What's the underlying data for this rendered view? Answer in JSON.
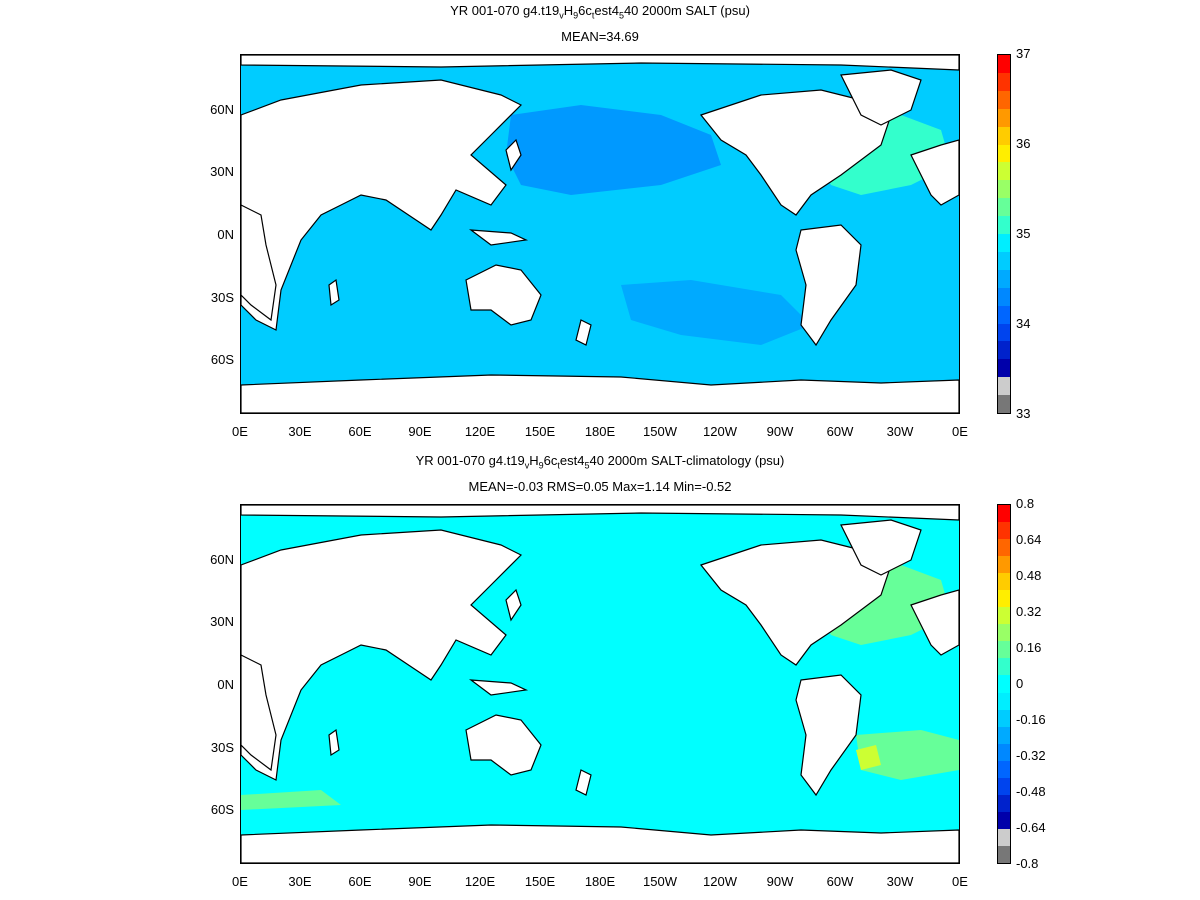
{
  "panels": [
    {
      "title_parts": [
        "YR 001-070 g4.t19",
        "v",
        "H",
        "9",
        "6c",
        "t",
        "est4",
        "5",
        "40 2000m SALT (psu)"
      ],
      "subtitle": "MEAN=34.69",
      "colorbar": {
        "labels": [
          "37",
          "36",
          "35",
          "34",
          "33"
        ],
        "colors": [
          "#ff0000",
          "#ff3300",
          "#ff6600",
          "#ff9900",
          "#ffcc00",
          "#ffee00",
          "#ccff33",
          "#99ff66",
          "#66ff99",
          "#33ffcc",
          "#00eeff",
          "#00ccff",
          "#00aaff",
          "#0088ff",
          "#0066ff",
          "#0044ee",
          "#0022cc",
          "#0000aa",
          "#cccccc",
          "#777777"
        ]
      },
      "ocean_color": "#00ccff",
      "anomalies": [
        {
          "region": "north_pacific",
          "color": "#0099ff"
        },
        {
          "region": "south_pacific",
          "color": "#00aaff"
        },
        {
          "region": "north_atlantic",
          "color": "#33ffcc"
        }
      ]
    },
    {
      "title_parts": [
        "YR 001-070 g4.t19",
        "v",
        "H",
        "9",
        "6c",
        "t",
        "est4",
        "5",
        "40 2000m SALT-climatology (psu)"
      ],
      "subtitle": "MEAN=-0.03   RMS=0.05   Max=1.14   Min=-0.52",
      "colorbar": {
        "labels": [
          "0.8",
          "0.64",
          "0.48",
          "0.32",
          "0.16",
          "0",
          "-0.16",
          "-0.32",
          "-0.48",
          "-0.64",
          "-0.8"
        ],
        "colors": [
          "#ff0000",
          "#ff3300",
          "#ff6600",
          "#ff9900",
          "#ffcc00",
          "#ffee00",
          "#ccff33",
          "#99ff66",
          "#66ff99",
          "#33ffcc",
          "#00ffff",
          "#00eeff",
          "#00ccff",
          "#00aaff",
          "#0088ff",
          "#0066ff",
          "#0044ee",
          "#0022cc",
          "#0000aa",
          "#cccccc",
          "#777777"
        ]
      },
      "ocean_color": "#00ffff",
      "anomalies": [
        {
          "region": "north_atlantic",
          "color": "#66ff99"
        },
        {
          "region": "south_atlantic",
          "color": "#66ff99"
        },
        {
          "region": "brazil_hotspot",
          "color": "#ccff33"
        },
        {
          "region": "southern_ocean",
          "color": "#66ff99"
        }
      ]
    }
  ],
  "axes": {
    "x_labels": [
      "0E",
      "30E",
      "60E",
      "90E",
      "120E",
      "150E",
      "180E",
      "150W",
      "120W",
      "90W",
      "60W",
      "30W",
      "0E"
    ],
    "y_labels": [
      "60N",
      "30N",
      "0N",
      "30S",
      "60S"
    ]
  }
}
